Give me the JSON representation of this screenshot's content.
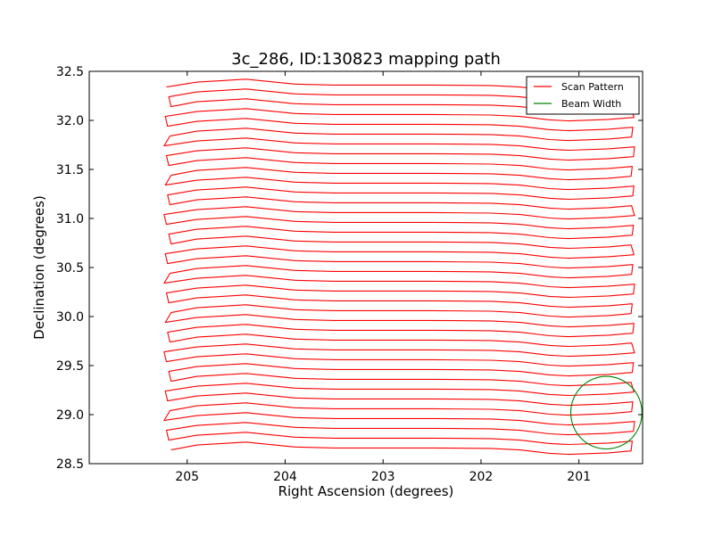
{
  "chart_data": {
    "type": "line",
    "title": "3c_286, ID:130823 mapping path",
    "xlabel": "Right Ascension (degrees)",
    "ylabel": "Declination (degrees)",
    "xlim": [
      206.0,
      200.35
    ],
    "ylim": [
      28.5,
      32.5
    ],
    "x_ticks": [
      205,
      204,
      203,
      202,
      201
    ],
    "y_ticks": [
      28.5,
      29.0,
      29.5,
      30.0,
      30.5,
      31.0,
      31.5,
      32.0,
      32.5
    ],
    "x_tick_labels": [
      "205",
      "204",
      "203",
      "202",
      "201"
    ],
    "y_tick_labels": [
      "28.5",
      "29.0",
      "29.5",
      "30.0",
      "30.5",
      "31.0",
      "31.5",
      "32.0",
      "32.5"
    ],
    "grid": false,
    "legend_position": "top-right",
    "legend": [
      {
        "label": "Scan Pattern",
        "color": "#ff0000"
      },
      {
        "label": "Beam Width",
        "color": "#008000"
      }
    ],
    "scan_pattern": {
      "color": "#ff0000",
      "dec_start": 28.64,
      "dec_end": 32.39,
      "row_spacing": 0.1,
      "ra_east": 205.2,
      "ra_west": 200.45,
      "rows": 38,
      "row_profile": [
        {
          "ra": 205.2,
          "ddec": 0.0
        },
        {
          "ra": 204.9,
          "ddec": 0.05
        },
        {
          "ra": 204.4,
          "ddec": 0.08
        },
        {
          "ra": 203.9,
          "ddec": 0.03
        },
        {
          "ra": 203.5,
          "ddec": 0.02
        },
        {
          "ra": 202.5,
          "ddec": 0.02
        },
        {
          "ra": 201.9,
          "ddec": 0.015
        },
        {
          "ra": 201.6,
          "ddec": 0.0
        },
        {
          "ra": 201.3,
          "ddec": -0.035
        },
        {
          "ra": 201.1,
          "ddec": -0.045
        },
        {
          "ra": 200.7,
          "ddec": -0.03
        },
        {
          "ra": 200.45,
          "ddec": -0.01
        }
      ]
    },
    "beam_width": {
      "color": "#008000",
      "center_ra": 200.72,
      "center_dec": 29.02,
      "radius_dec": 0.37
    }
  }
}
